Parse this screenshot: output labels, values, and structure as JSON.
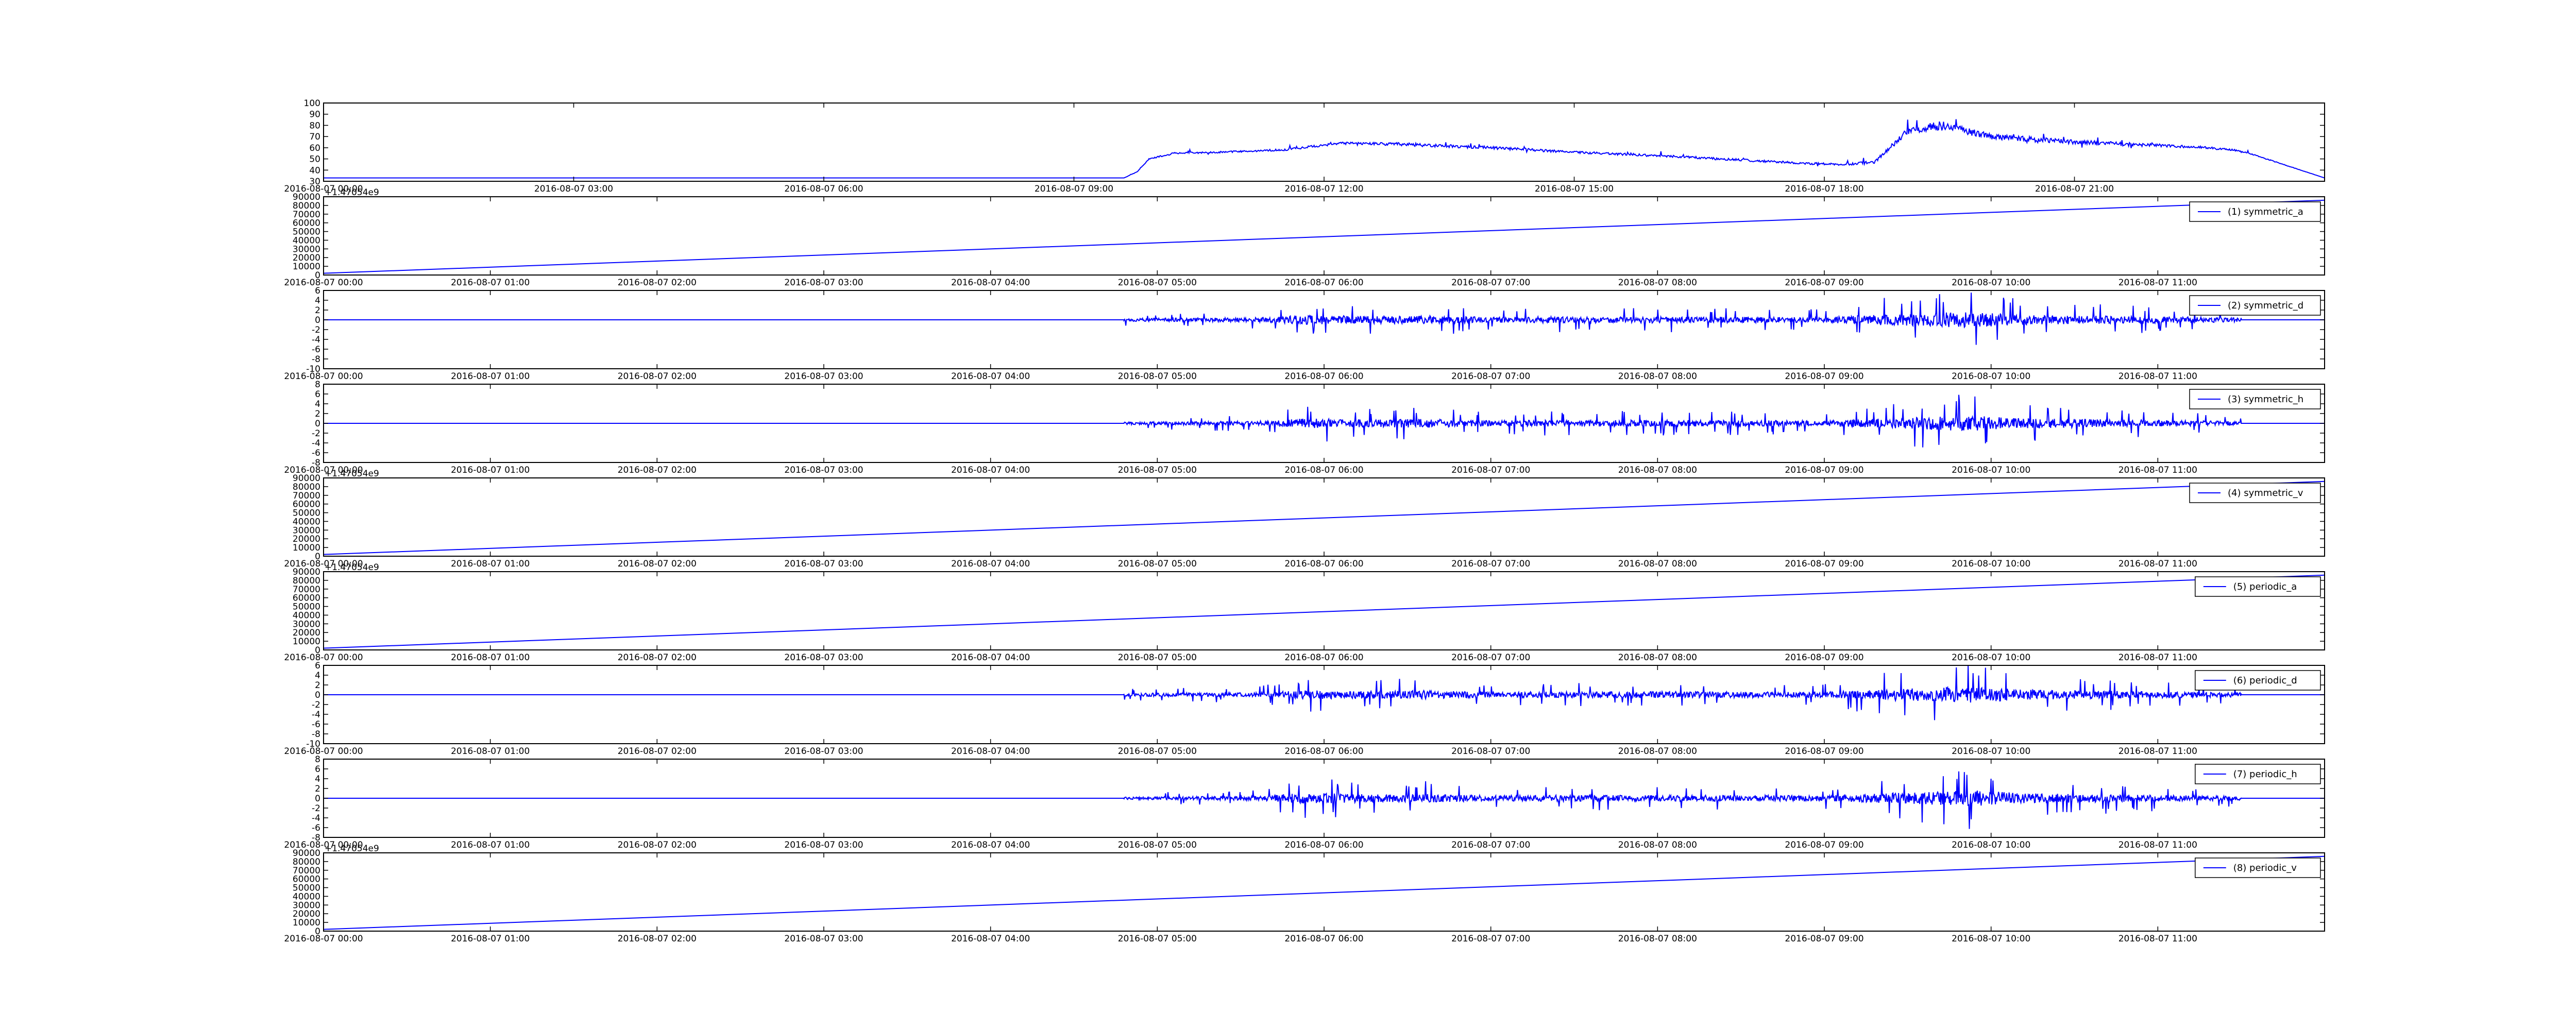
{
  "colors": {
    "line": "#0000ff",
    "axes": "#000000",
    "background": "#ffffff"
  },
  "chart_data": [
    {
      "type": "line",
      "offset_label": "",
      "legend": "",
      "legend_placement": "",
      "xlim": [
        0,
        24
      ],
      "ylim": [
        30,
        100
      ],
      "yticks": [
        30,
        40,
        50,
        60,
        70,
        80,
        90,
        100
      ],
      "xticks": [
        0,
        3,
        6,
        9,
        12,
        15,
        18,
        21
      ],
      "xtick_labels": [
        "2016-08-07 00:00",
        "2016-08-07 03:00",
        "2016-08-07 06:00",
        "2016-08-07 09:00",
        "2016-08-07 12:00",
        "2016-08-07 15:00",
        "2016-08-07 18:00",
        "2016-08-07 21:00"
      ],
      "series": [
        {
          "kind": "profile",
          "x": [
            0,
            9.6,
            9.75,
            9.9,
            10.2,
            10.7,
            11.5,
            12.2,
            13.0,
            14.0,
            15.0,
            16.0,
            17.0,
            17.8,
            18.2,
            18.6,
            19.0,
            19.4,
            20.0,
            21.0,
            22.0,
            22.6,
            22.9,
            23.1,
            24.0
          ],
          "y": [
            33,
            33,
            38,
            50,
            55,
            56,
            58,
            64,
            63,
            60,
            56,
            53,
            49,
            46,
            45,
            47,
            75,
            80,
            70,
            65,
            62,
            60,
            58,
            55,
            33
          ],
          "noise": [
            0,
            0,
            0.6,
            1,
            1.5,
            1.5,
            1.8,
            2,
            3,
            2.5,
            2,
            2,
            2,
            2,
            2,
            3,
            6,
            8,
            5,
            4,
            3,
            2,
            2,
            1,
            0
          ]
        }
      ]
    },
    {
      "type": "line",
      "offset_label": "+1.47054e9",
      "legend": "(1) symmetric_a",
      "legend_placement": "upper right",
      "xlim": [
        0,
        12
      ],
      "ylim": [
        0,
        90000
      ],
      "yticks": [
        0,
        10000,
        20000,
        30000,
        40000,
        50000,
        60000,
        70000,
        80000,
        90000
      ],
      "xticks": [
        0,
        1,
        2,
        3,
        4,
        5,
        6,
        7,
        8,
        9,
        10,
        11
      ],
      "xtick_labels": [
        "2016-08-07 00:00",
        "2016-08-07 01:00",
        "2016-08-07 02:00",
        "2016-08-07 03:00",
        "2016-08-07 04:00",
        "2016-08-07 05:00",
        "2016-08-07 06:00",
        "2016-08-07 07:00",
        "2016-08-07 08:00",
        "2016-08-07 09:00",
        "2016-08-07 10:00",
        "2016-08-07 11:00"
      ],
      "series": [
        {
          "kind": "linear",
          "x": [
            0,
            12
          ],
          "y": [
            2000,
            86000
          ]
        }
      ]
    },
    {
      "type": "line",
      "offset_label": "",
      "legend": "(2) symmetric_d",
      "legend_placement": "upper right",
      "xlim": [
        0,
        12
      ],
      "ylim": [
        -10,
        6
      ],
      "yticks": [
        -10,
        -8,
        -6,
        -4,
        -2,
        0,
        2,
        4,
        6
      ],
      "xticks": [
        0,
        1,
        2,
        3,
        4,
        5,
        6,
        7,
        8,
        9,
        10,
        11
      ],
      "xtick_labels": [
        "2016-08-07 00:00",
        "2016-08-07 01:00",
        "2016-08-07 02:00",
        "2016-08-07 03:00",
        "2016-08-07 04:00",
        "2016-08-07 05:00",
        "2016-08-07 06:00",
        "2016-08-07 07:00",
        "2016-08-07 08:00",
        "2016-08-07 09:00",
        "2016-08-07 10:00",
        "2016-08-07 11:00"
      ],
      "series": [
        {
          "kind": "wavelet",
          "start": 4.8,
          "end": 11.5,
          "env_x": [
            4.8,
            5.6,
            5.9,
            6.3,
            6.6,
            7.0,
            7.3,
            8.0,
            9.0,
            9.35,
            9.6,
            9.9,
            10.2,
            10.8,
            11.5
          ],
          "env_y": [
            1.2,
            1.8,
            3.8,
            3.0,
            3.5,
            2.2,
            2.5,
            2.6,
            2.2,
            4.5,
            5.5,
            6.5,
            4.0,
            3.0,
            1.8
          ]
        }
      ]
    },
    {
      "type": "line",
      "offset_label": "",
      "legend": "(3) symmetric_h",
      "legend_placement": "upper right",
      "xlim": [
        0,
        12
      ],
      "ylim": [
        -8,
        8
      ],
      "yticks": [
        -8,
        -6,
        -4,
        -2,
        0,
        2,
        4,
        6,
        8
      ],
      "xticks": [
        0,
        1,
        2,
        3,
        4,
        5,
        6,
        7,
        8,
        9,
        10,
        11
      ],
      "xtick_labels": [
        "2016-08-07 00:00",
        "2016-08-07 01:00",
        "2016-08-07 02:00",
        "2016-08-07 03:00",
        "2016-08-07 04:00",
        "2016-08-07 05:00",
        "2016-08-07 06:00",
        "2016-08-07 07:00",
        "2016-08-07 08:00",
        "2016-08-07 09:00",
        "2016-08-07 10:00",
        "2016-08-07 11:00"
      ],
      "series": [
        {
          "kind": "wavelet",
          "start": 4.8,
          "end": 11.5,
          "env_x": [
            4.8,
            5.6,
            5.9,
            6.3,
            6.6,
            7.0,
            7.3,
            8.0,
            9.0,
            9.35,
            9.6,
            9.9,
            10.2,
            10.8,
            11.5
          ],
          "env_y": [
            1.0,
            1.8,
            4.0,
            3.0,
            3.5,
            2.2,
            2.5,
            2.6,
            2.2,
            4.0,
            5.0,
            6.5,
            4.0,
            3.0,
            1.6
          ]
        }
      ]
    },
    {
      "type": "line",
      "offset_label": "+1.47054e9",
      "legend": "(4) symmetric_v",
      "legend_placement": "upper right",
      "xlim": [
        0,
        12
      ],
      "ylim": [
        0,
        90000
      ],
      "yticks": [
        0,
        10000,
        20000,
        30000,
        40000,
        50000,
        60000,
        70000,
        80000,
        90000
      ],
      "xticks": [
        0,
        1,
        2,
        3,
        4,
        5,
        6,
        7,
        8,
        9,
        10,
        11
      ],
      "xtick_labels": [
        "2016-08-07 00:00",
        "2016-08-07 01:00",
        "2016-08-07 02:00",
        "2016-08-07 03:00",
        "2016-08-07 04:00",
        "2016-08-07 05:00",
        "2016-08-07 06:00",
        "2016-08-07 07:00",
        "2016-08-07 08:00",
        "2016-08-07 09:00",
        "2016-08-07 10:00",
        "2016-08-07 11:00"
      ],
      "series": [
        {
          "kind": "linear",
          "x": [
            0,
            12
          ],
          "y": [
            2000,
            86000
          ]
        }
      ]
    },
    {
      "type": "line",
      "offset_label": "+1.47054e9",
      "legend": "(5) periodic_a",
      "legend_placement": "upper right",
      "xlim": [
        0,
        12
      ],
      "ylim": [
        0,
        90000
      ],
      "yticks": [
        0,
        10000,
        20000,
        30000,
        40000,
        50000,
        60000,
        70000,
        80000,
        90000
      ],
      "xticks": [
        0,
        1,
        2,
        3,
        4,
        5,
        6,
        7,
        8,
        9,
        10,
        11
      ],
      "xtick_labels": [
        "2016-08-07 00:00",
        "2016-08-07 01:00",
        "2016-08-07 02:00",
        "2016-08-07 03:00",
        "2016-08-07 04:00",
        "2016-08-07 05:00",
        "2016-08-07 06:00",
        "2016-08-07 07:00",
        "2016-08-07 08:00",
        "2016-08-07 09:00",
        "2016-08-07 10:00",
        "2016-08-07 11:00"
      ],
      "series": [
        {
          "kind": "linear",
          "x": [
            0,
            12
          ],
          "y": [
            2000,
            86000
          ]
        }
      ]
    },
    {
      "type": "line",
      "offset_label": "",
      "legend": "(6) periodic_d",
      "legend_placement": "upper right",
      "xlim": [
        0,
        12
      ],
      "ylim": [
        -10,
        6
      ],
      "yticks": [
        -10,
        -8,
        -6,
        -4,
        -2,
        0,
        2,
        4,
        6
      ],
      "xticks": [
        0,
        1,
        2,
        3,
        4,
        5,
        6,
        7,
        8,
        9,
        10,
        11
      ],
      "xtick_labels": [
        "2016-08-07 00:00",
        "2016-08-07 01:00",
        "2016-08-07 02:00",
        "2016-08-07 03:00",
        "2016-08-07 04:00",
        "2016-08-07 05:00",
        "2016-08-07 06:00",
        "2016-08-07 07:00",
        "2016-08-07 08:00",
        "2016-08-07 09:00",
        "2016-08-07 10:00",
        "2016-08-07 11:00"
      ],
      "series": [
        {
          "kind": "wavelet",
          "start": 4.8,
          "end": 11.5,
          "env_x": [
            4.8,
            5.6,
            5.9,
            6.3,
            6.6,
            7.0,
            7.3,
            8.0,
            9.0,
            9.35,
            9.6,
            9.9,
            10.2,
            10.8,
            11.5
          ],
          "env_y": [
            1.2,
            1.8,
            3.5,
            3.0,
            3.5,
            2.2,
            2.5,
            2.6,
            2.2,
            4.5,
            5.5,
            6.5,
            4.0,
            3.0,
            1.8
          ]
        }
      ]
    },
    {
      "type": "line",
      "offset_label": "",
      "legend": "(7) periodic_h",
      "legend_placement": "upper right",
      "xlim": [
        0,
        12
      ],
      "ylim": [
        -8,
        8
      ],
      "yticks": [
        -8,
        -6,
        -4,
        -2,
        0,
        2,
        4,
        6,
        8
      ],
      "xticks": [
        0,
        1,
        2,
        3,
        4,
        5,
        6,
        7,
        8,
        9,
        10,
        11
      ],
      "xtick_labels": [
        "2016-08-07 00:00",
        "2016-08-07 01:00",
        "2016-08-07 02:00",
        "2016-08-07 03:00",
        "2016-08-07 04:00",
        "2016-08-07 05:00",
        "2016-08-07 06:00",
        "2016-08-07 07:00",
        "2016-08-07 08:00",
        "2016-08-07 09:00",
        "2016-08-07 10:00",
        "2016-08-07 11:00"
      ],
      "series": [
        {
          "kind": "wavelet",
          "start": 4.8,
          "end": 11.5,
          "env_x": [
            4.8,
            5.6,
            5.9,
            6.3,
            6.6,
            7.0,
            7.3,
            8.0,
            9.0,
            9.35,
            9.6,
            9.9,
            10.2,
            10.8,
            11.5
          ],
          "env_y": [
            1.0,
            1.8,
            4.5,
            3.0,
            3.5,
            2.2,
            2.5,
            2.6,
            2.2,
            4.0,
            5.0,
            6.5,
            4.0,
            3.0,
            1.6
          ]
        }
      ]
    },
    {
      "type": "line",
      "offset_label": "+1.47054e9",
      "legend": "(8) periodic_v",
      "legend_placement": "upper right",
      "xlim": [
        0,
        12
      ],
      "ylim": [
        0,
        90000
      ],
      "yticks": [
        0,
        10000,
        20000,
        30000,
        40000,
        50000,
        60000,
        70000,
        80000,
        90000
      ],
      "xticks": [
        0,
        1,
        2,
        3,
        4,
        5,
        6,
        7,
        8,
        9,
        10,
        11
      ],
      "xtick_labels": [
        "2016-08-07 00:00",
        "2016-08-07 01:00",
        "2016-08-07 02:00",
        "2016-08-07 03:00",
        "2016-08-07 04:00",
        "2016-08-07 05:00",
        "2016-08-07 06:00",
        "2016-08-07 07:00",
        "2016-08-07 08:00",
        "2016-08-07 09:00",
        "2016-08-07 10:00",
        "2016-08-07 11:00"
      ],
      "series": [
        {
          "kind": "linear",
          "x": [
            0,
            12
          ],
          "y": [
            2000,
            86000
          ]
        }
      ]
    }
  ]
}
